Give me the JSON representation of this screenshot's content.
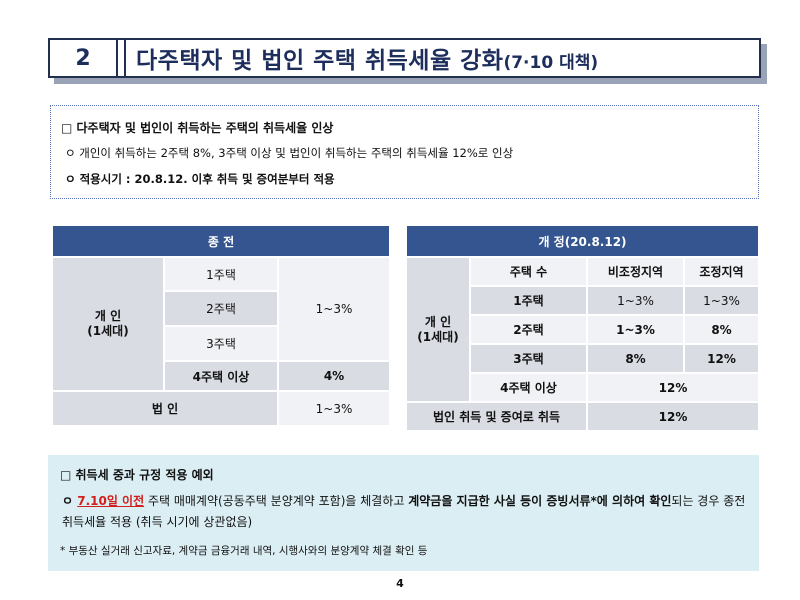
{
  "title": {
    "number": "2",
    "text": "다주택자 및 법인 주택 취득세율 강화",
    "subtitle": "(7·10 대책)"
  },
  "summary": {
    "heading": "□ 다주택자 및 법인이 취득하는 주택의 취득세율 인상",
    "bullet1": "ㅇ 개인이 취득하는 2주택 8%, 3주택 이상 및 법인이 취득하는 주택의 취득세율 12%로 인상",
    "bullet2": "ㅇ 적용시기 : 20.8.12. 이후 취득 및 증여분부터 적용"
  },
  "before_table": {
    "header": "종 전",
    "group_label": "개 인\n(1세대)",
    "rows": [
      "1주택",
      "2주택",
      "3주택",
      "4주택 이상"
    ],
    "rate_1to3": "1~3%",
    "rate_4plus": "4%",
    "corp_label": "법 인",
    "corp_rate": "1~3%"
  },
  "after_table": {
    "header": "개 정(20.8.12)",
    "group_label": "개 인\n(1세대)",
    "col_count": "주택 수",
    "col_nonadjusted": "비조정지역",
    "col_adjusted": "조정지역",
    "rows": [
      {
        "label": "1주택",
        "non": "1~3%",
        "adj": "1~3%"
      },
      {
        "label": "2주택",
        "non": "1~3%",
        "adj": "8%"
      },
      {
        "label": "3주택",
        "non": "8%",
        "adj": "12%"
      }
    ],
    "row4_label": "4주택 이상",
    "row4_rate": "12%",
    "corp_label": "법인 취득 및 증여로 취득",
    "corp_rate": "12%"
  },
  "exception": {
    "heading": "□ 취득세 중과 규정 적용 예외",
    "bullet_prefix": "ㅇ ",
    "date": "7.10일 이전",
    "part1": " 주택 매매계약(공동주택 분양계약 포함)을 체결하고 ",
    "bold1": "계약금을 지급한 사실 등이 증빙서류*에 의하여 확인",
    "part2": "되는 경우 종전 취득세율 적용 (취득 시기에 상관없음)",
    "note": "* 부동산 실거래 신고자료, 계약금 금융거래 내역, 시행사와의 분양계약 체결 확인 등"
  },
  "page_number": "4"
}
